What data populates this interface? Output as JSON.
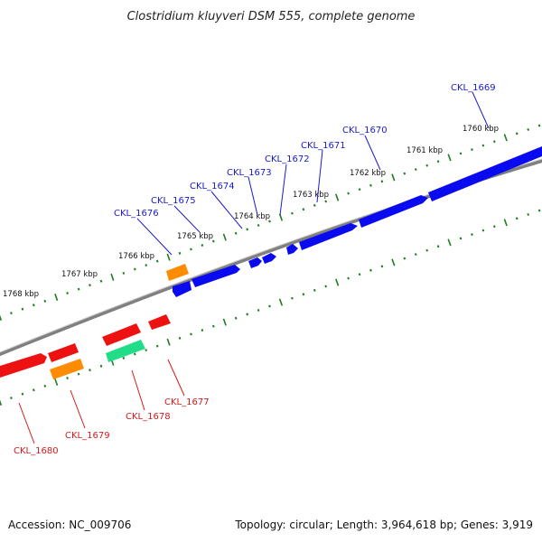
{
  "title": "Clostridium kluyveri DSM 555, complete genome",
  "footer": {
    "accession": "Accession: NC_009706",
    "stats": "Topology: circular; Length: 3,964,618 bp; Genes: 3,919"
  },
  "colors": {
    "backbone": "#808080",
    "tick": "#1e7d1e",
    "forward_label": "#1a1acc",
    "reverse_label": "#d41a1a",
    "forward_gene": "#0a0af0",
    "reverse_gene": "#ee1111",
    "orange_gene": "#ff8c00",
    "green_gene": "#22dd88"
  },
  "kbp_labels": [
    "1768 kbp",
    "1767 kbp",
    "1766 kbp",
    "1765 kbp",
    "1764 kbp",
    "1763 kbp",
    "1762 kbp",
    "1761 kbp",
    "1760 kbp"
  ],
  "forward_labels": [
    "CKL_1676",
    "CKL_1675",
    "CKL_1674",
    "CKL_1673",
    "CKL_1672",
    "CKL_1671",
    "CKL_1670",
    "CKL_1669"
  ],
  "reverse_labels": [
    "CKL_1680",
    "CKL_1679",
    "CKL_1678",
    "CKL_1677"
  ]
}
